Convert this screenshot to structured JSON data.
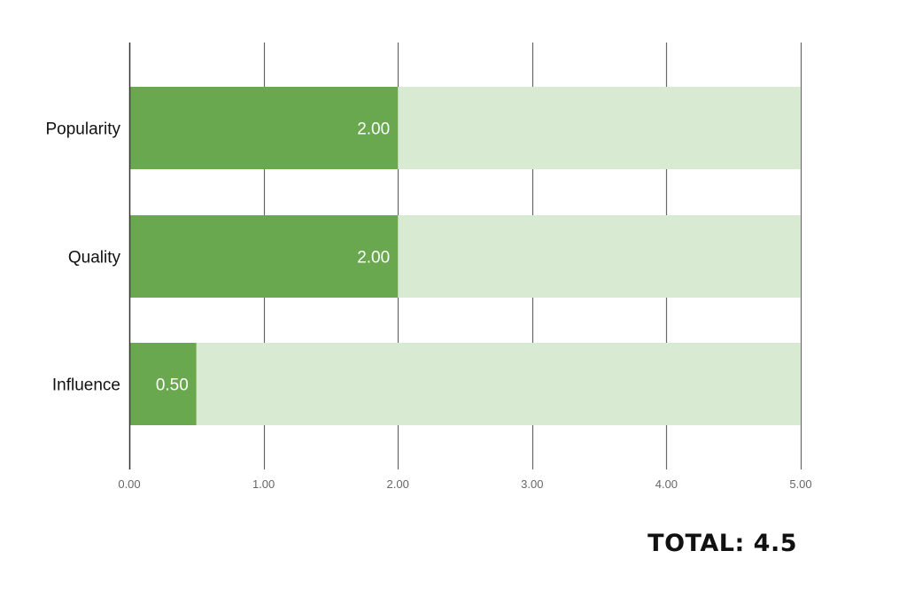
{
  "chart_data": {
    "type": "bar",
    "orientation": "horizontal",
    "stacked": true,
    "title": "",
    "xlabel": "",
    "ylabel": "",
    "categories": [
      "Popularity",
      "Quality",
      "Influence"
    ],
    "series": [
      {
        "values": [
          2.0,
          2.0,
          0.5
        ],
        "color": "#6aa84f"
      },
      {
        "values": [
          3.0,
          3.0,
          4.5
        ],
        "color": "#d9ead3"
      }
    ],
    "data_labels": [
      "2.00",
      "2.00",
      "0.50"
    ],
    "xlim": [
      0,
      5
    ],
    "xticks": [
      0,
      1,
      2,
      3,
      4,
      5
    ],
    "xtick_labels": [
      "0.00",
      "1.00",
      "2.00",
      "3.00",
      "4.00",
      "5.00"
    ],
    "grid": true,
    "legend": "none"
  },
  "total_label": "TOTAL: 4.5"
}
